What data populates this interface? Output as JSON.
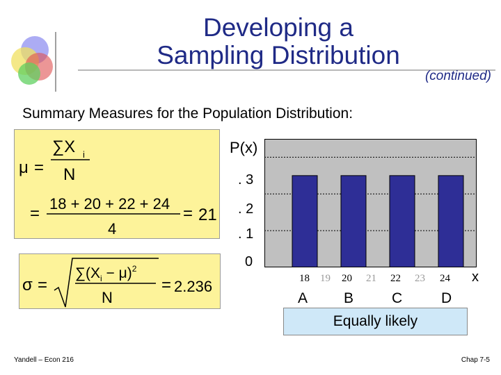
{
  "title_line1": "Developing a",
  "title_line2": "Sampling Distribution",
  "subtitle": "(continued)",
  "summary": "Summary Measures for the Population Distribution:",
  "formulas": {
    "mu_numerator": "∑X",
    "mu_sub": "i",
    "mu_denominator": "N",
    "mu_symbol": "μ",
    "mean_numerator": "18 + 20 + 22 + 24",
    "mean_denominator": "4",
    "mean_result": "21",
    "sigma_symbol": "σ",
    "sigma_numerator": "∑(X",
    "sigma_numerator_rest": " − μ)",
    "sigma_sup": "2",
    "sigma_denominator": "N",
    "sigma_result": "2.236"
  },
  "chart": {
    "y_label": "P(x)",
    "y_ticks": [
      ". 3",
      ". 2",
      ". 1",
      "0"
    ],
    "x_ticks": [
      "18",
      "19",
      "20",
      "21",
      "22",
      "23",
      "24"
    ],
    "x_label": "x",
    "letters": [
      "A",
      "B",
      "C",
      "D"
    ],
    "caption": "Equally likely"
  },
  "chart_data": {
    "type": "bar",
    "categories": [
      "18",
      "20",
      "22",
      "24"
    ],
    "values": [
      0.25,
      0.25,
      0.25,
      0.25
    ],
    "xlabel": "x",
    "ylabel": "P(x)",
    "ylim": [
      0,
      0.35
    ],
    "grid": true,
    "bar_color": "#2e2e96",
    "plot_bg": "#c0c0c0"
  },
  "footer": {
    "left": "Yandell – Econ 216",
    "right": "Chap 7-5"
  },
  "colors": {
    "title": "#1f2a86",
    "formula_box": "#fdf39a",
    "caption_box": "#cfe8f8"
  }
}
